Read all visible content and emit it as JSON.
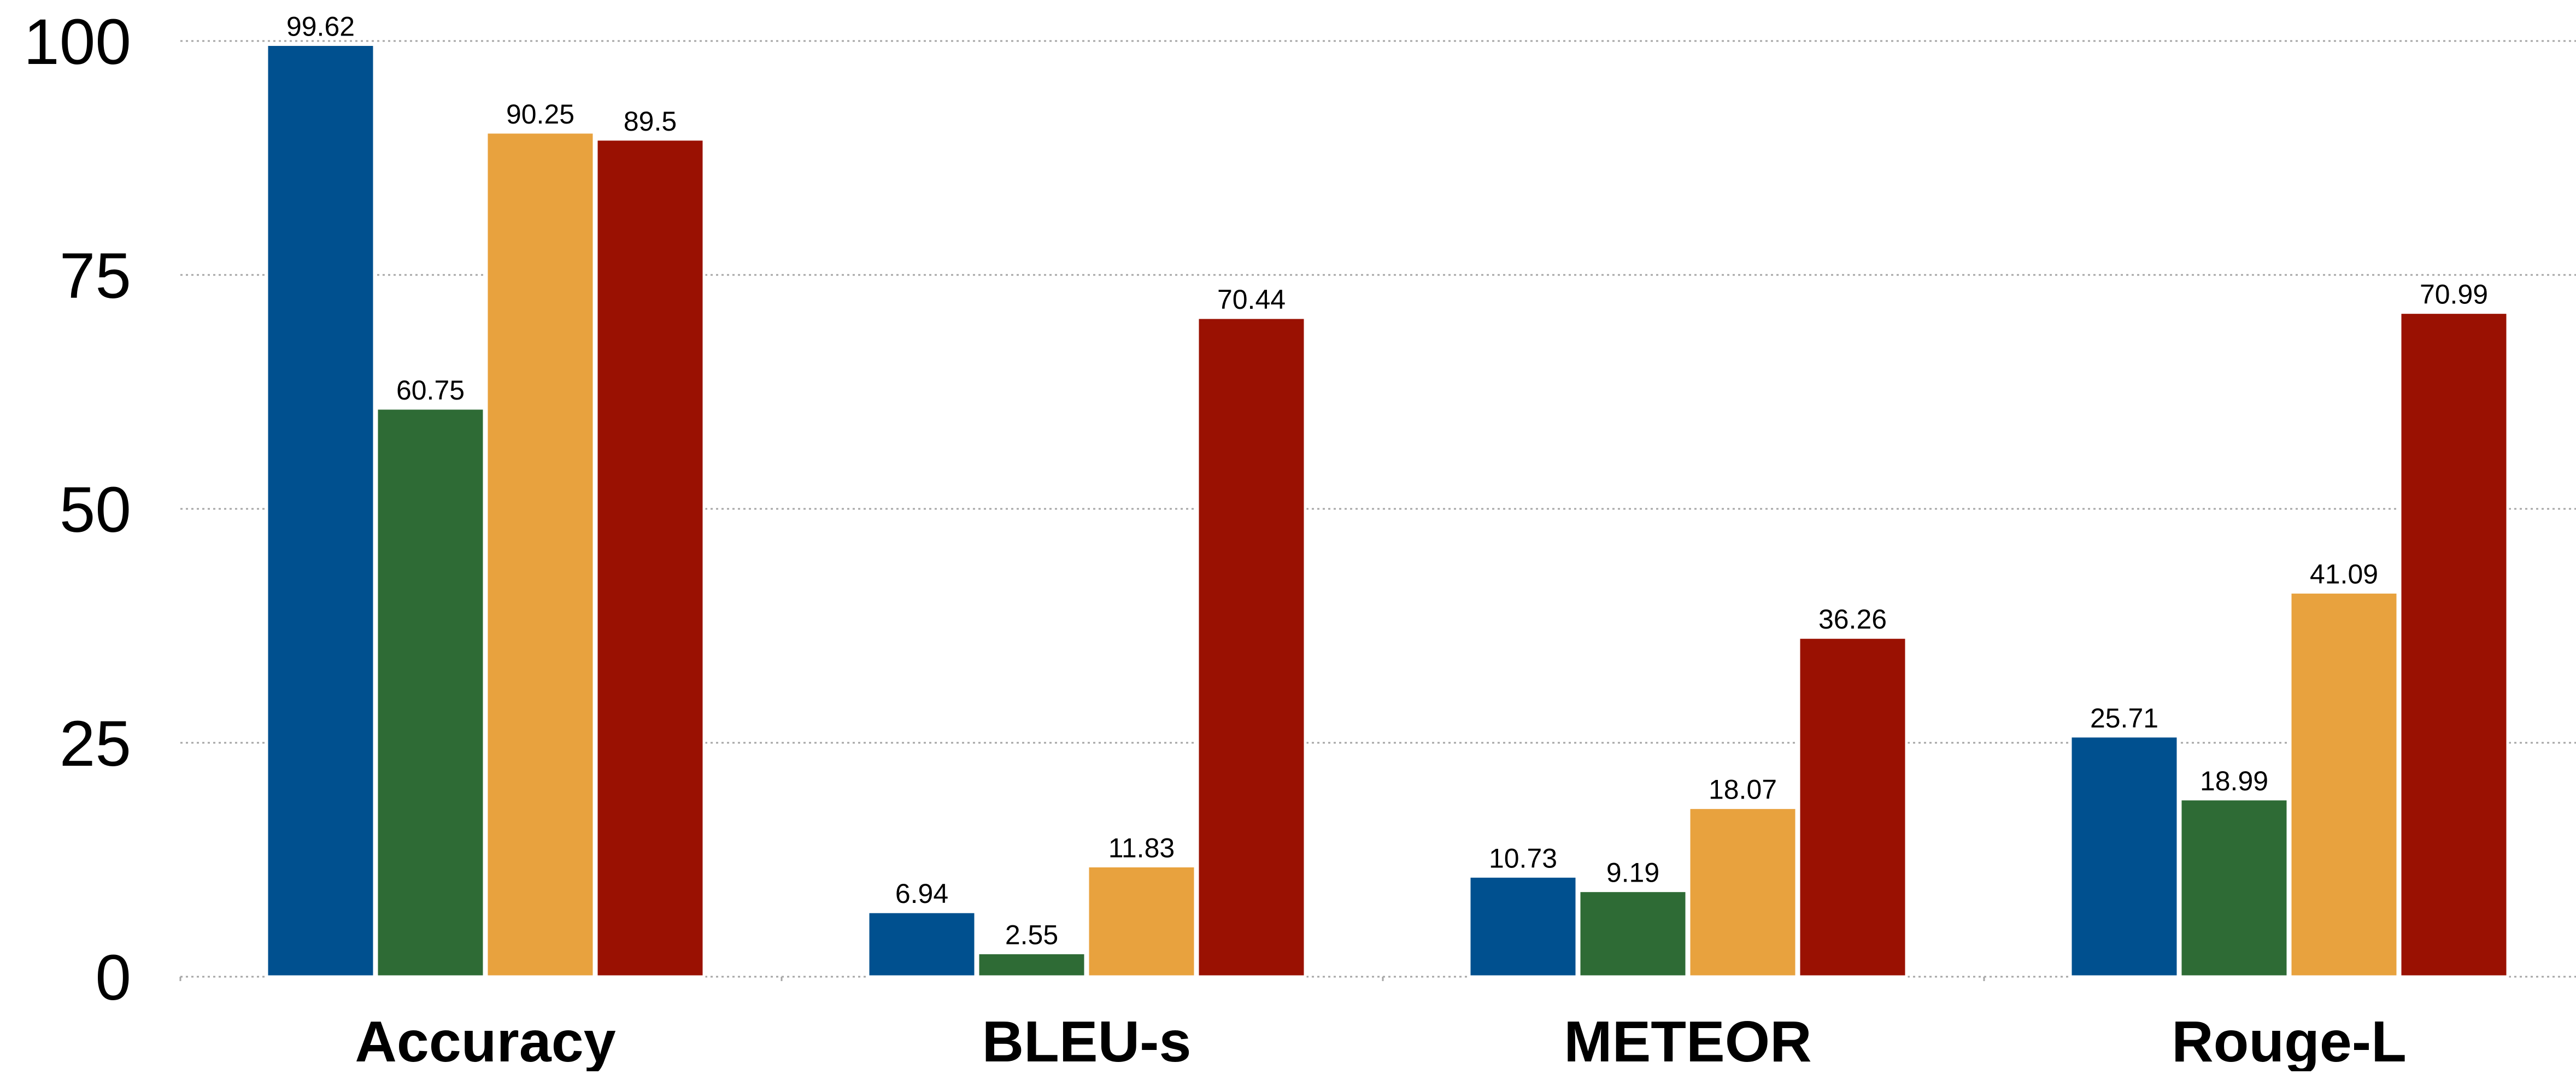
{
  "chart_data": {
    "type": "bar",
    "title": "",
    "xlabel": "",
    "ylabel": "",
    "ylim": [
      0,
      100
    ],
    "yticks": [
      0,
      25,
      50,
      75,
      100
    ],
    "grid": true,
    "legend": "none",
    "categories": [
      "Accuracy",
      "BLEU-s",
      "METEOR",
      "Rouge-L"
    ],
    "series": [
      {
        "color": "#00508f",
        "values": [
          99.62,
          6.94,
          10.73,
          25.71
        ]
      },
      {
        "color": "#2e6b35",
        "values": [
          60.75,
          2.55,
          9.19,
          18.99
        ]
      },
      {
        "color": "#e8a23e",
        "values": [
          90.25,
          11.83,
          18.07,
          41.09
        ]
      },
      {
        "color": "#9a1102",
        "values": [
          89.5,
          70.44,
          36.26,
          70.99
        ]
      }
    ],
    "data_labels": [
      [
        "99.62",
        "6.94",
        "10.73",
        "25.71"
      ],
      [
        "60.75",
        "2.55",
        "9.19",
        "18.99"
      ],
      [
        "90.25",
        "11.83",
        "18.07",
        "41.09"
      ],
      [
        "89.5",
        "70.44",
        "36.26",
        "70.99"
      ]
    ]
  }
}
